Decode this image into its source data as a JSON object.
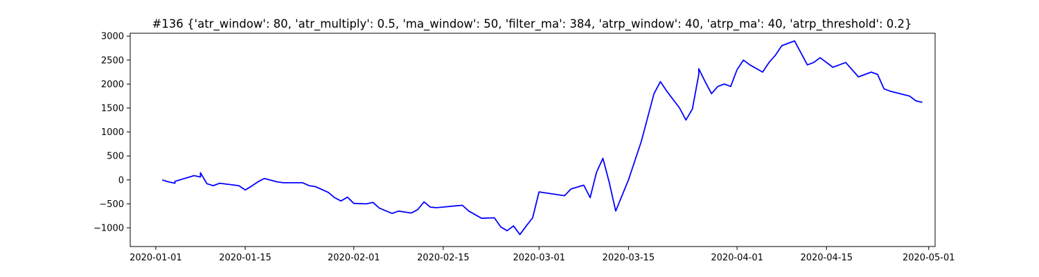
{
  "chart_data": {
    "type": "line",
    "title": "#136 {'atr_window': 80, 'atr_multiply': 0.5, 'ma_window': 50, 'filter_ma': 384, 'atrp_window': 40, 'atrp_ma': 40, 'atrp_threshold': 0.2}",
    "xlabel": "",
    "ylabel": "",
    "xlim": [
      "2019-12-28",
      "2020-05-02"
    ],
    "ylim": [
      -1390,
      3060
    ],
    "grid": false,
    "legend": "none",
    "line_color": "#0000ff",
    "x_ticks": [
      "2020-01-01",
      "2020-01-15",
      "2020-02-01",
      "2020-02-15",
      "2020-03-01",
      "2020-03-15",
      "2020-04-01",
      "2020-04-15",
      "2020-05-01"
    ],
    "y_ticks": [
      -1000,
      -500,
      0,
      500,
      1000,
      1500,
      2000,
      2500,
      3000
    ],
    "series": [
      {
        "name": "",
        "x": [
          "2020-01-02",
          "2020-01-03",
          "2020-01-04",
          "2020-01-04",
          "2020-01-07",
          "2020-01-08",
          "2020-01-08",
          "2020-01-09",
          "2020-01-10",
          "2020-01-11",
          "2020-01-14",
          "2020-01-15",
          "2020-01-16",
          "2020-01-17",
          "2020-01-18",
          "2020-01-20",
          "2020-01-21",
          "2020-01-24",
          "2020-01-25",
          "2020-01-26",
          "2020-01-28",
          "2020-01-29",
          "2020-01-30",
          "2020-01-31",
          "2020-02-01",
          "2020-02-03",
          "2020-02-04",
          "2020-02-05",
          "2020-02-07",
          "2020-02-08",
          "2020-02-10",
          "2020-02-11",
          "2020-02-12",
          "2020-02-13",
          "2020-02-14",
          "2020-02-17",
          "2020-02-18",
          "2020-02-19",
          "2020-02-21",
          "2020-02-23",
          "2020-02-24",
          "2020-02-25",
          "2020-02-26",
          "2020-02-27",
          "2020-02-28",
          "2020-02-29",
          "2020-03-01",
          "2020-03-03",
          "2020-03-05",
          "2020-03-06",
          "2020-03-08",
          "2020-03-09",
          "2020-03-10",
          "2020-03-11",
          "2020-03-12",
          "2020-03-13",
          "2020-03-15",
          "2020-03-17",
          "2020-03-18",
          "2020-03-19",
          "2020-03-20",
          "2020-03-21",
          "2020-03-23",
          "2020-03-24",
          "2020-03-25",
          "2020-03-26",
          "2020-03-26",
          "2020-03-27",
          "2020-03-28",
          "2020-03-29",
          "2020-03-30",
          "2020-03-31",
          "2020-04-01",
          "2020-04-02",
          "2020-04-03",
          "2020-04-05",
          "2020-04-06",
          "2020-04-07",
          "2020-04-08",
          "2020-04-09",
          "2020-04-10",
          "2020-04-12",
          "2020-04-13",
          "2020-04-14",
          "2020-04-16",
          "2020-04-17",
          "2020-04-18",
          "2020-04-20",
          "2020-04-22",
          "2020-04-23",
          "2020-04-24",
          "2020-04-25",
          "2020-04-28",
          "2020-04-29",
          "2020-04-30"
        ],
        "values": [
          0,
          -40,
          -70,
          -30,
          90,
          60,
          150,
          -80,
          -120,
          -70,
          -120,
          -210,
          -130,
          -40,
          30,
          -40,
          -60,
          -60,
          -120,
          -140,
          -260,
          -370,
          -440,
          -360,
          -490,
          -500,
          -470,
          -590,
          -700,
          -650,
          -690,
          -620,
          -460,
          -570,
          -580,
          -540,
          -530,
          -650,
          -800,
          -790,
          -980,
          -1060,
          -960,
          -1140,
          -960,
          -790,
          -250,
          -290,
          -330,
          -190,
          -110,
          -370,
          160,
          450,
          -60,
          -650,
          0,
          800,
          1300,
          1800,
          2050,
          1850,
          1500,
          1250,
          1480,
          2200,
          2320,
          2050,
          1800,
          1950,
          2000,
          1950,
          2300,
          2500,
          2400,
          2250,
          2450,
          2600,
          2800,
          2850,
          2900,
          2400,
          2450,
          2550,
          2350,
          2400,
          2450,
          2150,
          2250,
          2200,
          1900,
          1850,
          1750,
          1650,
          1620
        ]
      }
    ]
  }
}
